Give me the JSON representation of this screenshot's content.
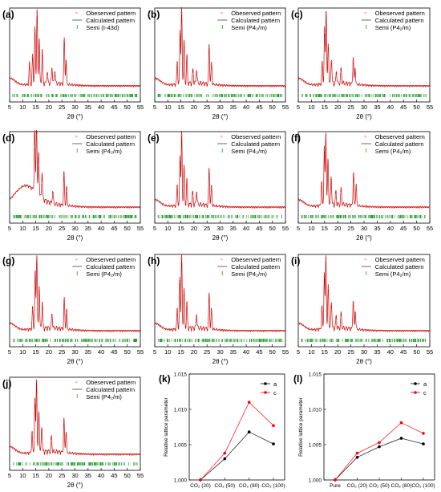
{
  "colors": {
    "observed": "#ff8a8a",
    "calculated": "#cc0000",
    "tick_marks": "#1e9b2a",
    "series_a": "#000000",
    "series_c": "#ff0000",
    "axis": "#000000"
  },
  "chart_data": [
    {
      "panel": "(a)",
      "type": "line",
      "xlabel": "2θ (°)",
      "xlim": [
        5,
        55
      ],
      "x_ticks": [
        "5",
        "10",
        "15",
        "20",
        "25",
        "30",
        "35",
        "40",
        "45",
        "50",
        "55"
      ],
      "legend": [
        "Obeserved pattern",
        "Calculated pattern",
        "Semi (I-43d)"
      ],
      "grid": false,
      "peaks": [
        [
          15.5,
          1.0
        ],
        [
          14.7,
          0.75
        ],
        [
          16.3,
          0.62
        ],
        [
          17.5,
          0.45
        ],
        [
          13.8,
          0.4
        ],
        [
          12.6,
          0.3
        ],
        [
          25.9,
          0.62
        ],
        [
          26.6,
          0.32
        ],
        [
          21.2,
          0.22
        ],
        [
          22.3,
          0.18
        ],
        [
          19.4,
          0.15
        ]
      ]
    },
    {
      "panel": "(b)",
      "type": "line",
      "xlabel": "2θ (°)",
      "xlim": [
        5,
        55
      ],
      "x_ticks": [
        "5",
        "10",
        "15",
        "20",
        "25",
        "30",
        "35",
        "40",
        "45",
        "50",
        "55"
      ],
      "legend": [
        "Obeserved pattern",
        "Calculated pattern",
        "Semi (P4₂/m)"
      ],
      "grid": false,
      "peaks": [
        [
          15.3,
          1.0
        ],
        [
          14.7,
          0.72
        ],
        [
          16.2,
          0.58
        ],
        [
          17.3,
          0.38
        ],
        [
          13.6,
          0.3
        ],
        [
          25.8,
          0.52
        ],
        [
          26.7,
          0.3
        ],
        [
          21.0,
          0.2
        ],
        [
          19.6,
          0.18
        ]
      ]
    },
    {
      "panel": "(c)",
      "type": "line",
      "xlabel": "2θ (°)",
      "xlim": [
        5,
        55
      ],
      "x_ticks": [
        "5",
        "10",
        "15",
        "20",
        "25",
        "30",
        "35",
        "40",
        "45",
        "50",
        "55"
      ],
      "legend": [
        "Obeserved pattern",
        "Calculated pattern",
        "Semi (P4₂/m)"
      ],
      "grid": false,
      "peaks": [
        [
          15.6,
          1.0
        ],
        [
          15.0,
          0.74
        ],
        [
          16.4,
          0.55
        ],
        [
          17.6,
          0.34
        ],
        [
          14.1,
          0.3
        ],
        [
          25.9,
          0.36
        ],
        [
          26.6,
          0.22
        ],
        [
          21.3,
          0.2
        ],
        [
          19.5,
          0.16
        ]
      ]
    },
    {
      "panel": "(d)",
      "type": "line",
      "xlabel": "2θ (°)",
      "xlim": [
        5,
        55
      ],
      "x_ticks": [
        "5",
        "10",
        "15",
        "20",
        "25",
        "30",
        "35",
        "40",
        "45",
        "50",
        "55"
      ],
      "legend": [
        "Obeserved pattern",
        "Calculated pattern",
        "Semi (P4₂/m)"
      ],
      "grid": false,
      "peaks": [
        [
          15.3,
          1.0
        ],
        [
          14.6,
          0.85
        ],
        [
          16.1,
          0.6
        ],
        [
          17.4,
          0.35
        ],
        [
          25.8,
          0.45
        ],
        [
          26.8,
          0.25
        ],
        [
          21.5,
          0.18
        ]
      ]
    },
    {
      "panel": "(e)",
      "type": "line",
      "xlabel": "2θ (°)",
      "xlim": [
        5,
        55
      ],
      "x_ticks": [
        "5",
        "10",
        "15",
        "20",
        "25",
        "30",
        "35",
        "40",
        "45",
        "50",
        "55"
      ],
      "legend": [
        "Obeserved pattern",
        "Calculated pattern",
        "Semi (P4₂/m)"
      ],
      "grid": false,
      "peaks": [
        [
          15.3,
          1.0
        ],
        [
          14.7,
          0.68
        ],
        [
          16.2,
          0.55
        ],
        [
          17.3,
          0.36
        ],
        [
          13.6,
          0.28
        ],
        [
          25.8,
          0.5
        ],
        [
          26.7,
          0.28
        ],
        [
          21.0,
          0.2
        ],
        [
          19.5,
          0.17
        ]
      ]
    },
    {
      "panel": "(f)",
      "type": "line",
      "xlabel": "2θ (°)",
      "xlim": [
        5,
        55
      ],
      "x_ticks": [
        "5",
        "10",
        "15",
        "20",
        "25",
        "30",
        "35",
        "40",
        "45",
        "50",
        "55"
      ],
      "legend": [
        "Obeserved pattern",
        "Calculated pattern",
        "Semi (P4₂/m)"
      ],
      "grid": false,
      "peaks": [
        [
          15.5,
          1.0
        ],
        [
          14.9,
          0.8
        ],
        [
          16.3,
          0.62
        ],
        [
          17.5,
          0.4
        ],
        [
          13.9,
          0.32
        ],
        [
          26.0,
          0.45
        ],
        [
          27.0,
          0.3
        ],
        [
          21.3,
          0.22
        ],
        [
          19.3,
          0.18
        ]
      ]
    },
    {
      "panel": "(g)",
      "type": "line",
      "xlabel": "2θ (°)",
      "xlim": [
        5,
        55
      ],
      "x_ticks": [
        "5",
        "10",
        "15",
        "20",
        "25",
        "30",
        "35",
        "40",
        "45",
        "50",
        "55"
      ],
      "legend": [
        "Obeserved pattern",
        "Calculated pattern",
        "Semi (P4₂/m)"
      ],
      "grid": false,
      "peaks": [
        [
          15.4,
          1.0
        ],
        [
          14.8,
          0.78
        ],
        [
          16.3,
          0.6
        ],
        [
          17.5,
          0.36
        ],
        [
          13.8,
          0.3
        ],
        [
          25.9,
          0.42
        ],
        [
          26.8,
          0.26
        ],
        [
          21.2,
          0.2
        ]
      ]
    },
    {
      "panel": "(h)",
      "type": "line",
      "xlabel": "2θ (°)",
      "xlim": [
        5,
        55
      ],
      "x_ticks": [
        "5",
        "10",
        "15",
        "20",
        "25",
        "30",
        "35",
        "40",
        "45",
        "50",
        "55"
      ],
      "legend": [
        "Obeserved pattern",
        "Calculated pattern",
        "Semi (P4₂/m)"
      ],
      "grid": false,
      "peaks": [
        [
          15.3,
          1.0
        ],
        [
          14.6,
          0.7
        ],
        [
          16.2,
          0.55
        ],
        [
          17.3,
          0.36
        ],
        [
          13.6,
          0.28
        ],
        [
          25.8,
          0.48
        ],
        [
          26.7,
          0.28
        ],
        [
          21.0,
          0.2
        ]
      ]
    },
    {
      "panel": "(i)",
      "type": "line",
      "xlabel": "2θ (°)",
      "xlim": [
        5,
        55
      ],
      "x_ticks": [
        "5",
        "10",
        "15",
        "20",
        "25",
        "30",
        "35",
        "40",
        "45",
        "50",
        "55"
      ],
      "legend": [
        "Obeserved pattern",
        "Calculated pattern",
        "Semi (P4₂/m)"
      ],
      "grid": false,
      "peaks": [
        [
          15.5,
          1.0
        ],
        [
          14.9,
          0.76
        ],
        [
          16.4,
          0.6
        ],
        [
          17.6,
          0.38
        ],
        [
          14.0,
          0.3
        ],
        [
          25.9,
          0.4
        ],
        [
          26.7,
          0.24
        ],
        [
          21.3,
          0.2
        ],
        [
          19.4,
          0.16
        ]
      ]
    },
    {
      "panel": "(j)",
      "type": "line",
      "xlabel": "2θ (°)",
      "xlim": [
        5,
        55
      ],
      "x_ticks": [
        "5",
        "10",
        "15",
        "20",
        "25",
        "30",
        "35",
        "40",
        "45",
        "50",
        "55"
      ],
      "legend": [
        "Obeserved pattern",
        "Calculated pattern",
        "Semi (P4₂/m)"
      ],
      "grid": false,
      "peaks": [
        [
          15.3,
          1.0
        ],
        [
          14.7,
          0.72
        ],
        [
          16.2,
          0.56
        ],
        [
          17.3,
          0.36
        ],
        [
          13.6,
          0.28
        ],
        [
          25.8,
          0.45
        ],
        [
          26.6,
          0.3
        ],
        [
          21.0,
          0.2
        ]
      ]
    },
    {
      "panel": "(k)",
      "type": "line",
      "ylabel": "Relative lattice parameter",
      "ylim": [
        1.0,
        1.015
      ],
      "y_ticks": [
        "1.000",
        "1.005",
        "1.010",
        "1.015"
      ],
      "categories": [
        "CO₂ (20)",
        "CO₂ (50)",
        "CO₂ (80)",
        "CO₂ (100)"
      ],
      "series": [
        {
          "name": "a",
          "values": [
            1.0,
            1.003,
            1.0068,
            1.0051
          ]
        },
        {
          "name": "c",
          "values": [
            1.0,
            1.0038,
            1.011,
            1.0077
          ]
        }
      ],
      "legend_position": "top-right"
    },
    {
      "panel": "(l)",
      "type": "line",
      "ylabel": "Relative lattice parameter",
      "ylim": [
        1.0,
        1.015
      ],
      "y_ticks": [
        "1.000",
        "1.005",
        "1.010",
        "1.015"
      ],
      "categories": [
        "Pure",
        "CO₂ (20)",
        "CO₂ (50)",
        "CO₂ (80)",
        "CO₂ (100)"
      ],
      "series": [
        {
          "name": "a",
          "values": [
            1.0,
            1.0032,
            1.0047,
            1.0059,
            1.0051
          ]
        },
        {
          "name": "c",
          "values": [
            1.0,
            1.0038,
            1.0053,
            1.0081,
            1.0066
          ]
        }
      ],
      "legend_position": "top-right"
    }
  ]
}
